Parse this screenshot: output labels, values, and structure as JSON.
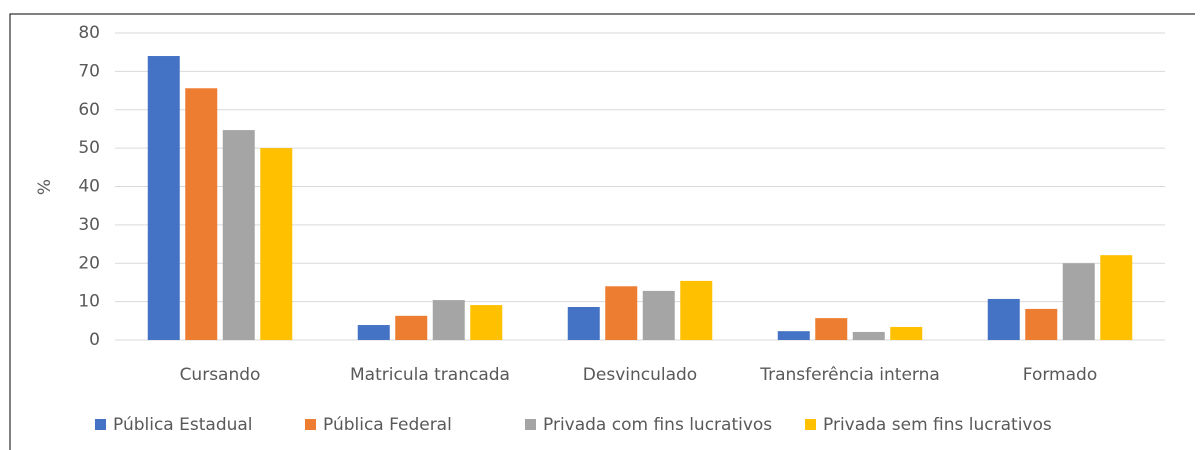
{
  "chart_data": {
    "type": "bar",
    "ylabel": "%",
    "categories": [
      "Cursando",
      "Matricula trancada",
      "Desvinculado",
      "Transferência interna",
      "Formado"
    ],
    "series": [
      {
        "name": "Pública Estadual",
        "color": "#4472c4",
        "values": [
          74,
          3.9,
          8.6,
          2.3,
          10.7
        ]
      },
      {
        "name": "Pública Federal",
        "color": "#ed7d31",
        "values": [
          65.6,
          6.3,
          14,
          5.7,
          8.1
        ]
      },
      {
        "name": "Privada com fins lucrativos",
        "color": "#a5a5a5",
        "values": [
          54.7,
          10.4,
          12.8,
          2.1,
          20
        ]
      },
      {
        "name": "Privada sem fins lucrativos",
        "color": "#ffc000",
        "values": [
          50,
          9.1,
          15.4,
          3.4,
          22.1
        ]
      }
    ],
    "ylim": [
      0,
      80
    ],
    "yticks": [
      0,
      10,
      20,
      30,
      40,
      50,
      60,
      70,
      80
    ],
    "grid": true,
    "legend": "bottom"
  }
}
